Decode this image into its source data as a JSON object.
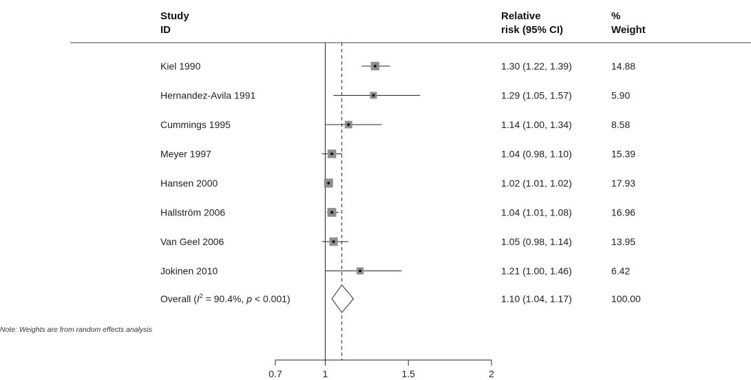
{
  "header": {
    "study_line1": "Study",
    "study_line2": "ID",
    "rr_line1": "Relative",
    "rr_line2": "risk (95% CI)",
    "weight_line1": "%",
    "weight_line2": "Weight"
  },
  "note": "Note: Weights are from random effects analysis",
  "chart_data": {
    "type": "forest",
    "title": "",
    "xlabel": "",
    "ylabel": "",
    "xlim": [
      0.7,
      2
    ],
    "x_ticks": [
      "0.7",
      "1",
      "1.5",
      "2"
    ],
    "reference_line": 1,
    "studies": [
      {
        "study": "Kiel 1990",
        "estimate": 1.3,
        "lower": 1.22,
        "upper": 1.39,
        "rr_text": "1.30 (1.22, 1.39)",
        "weight": 14.88,
        "weight_text": "14.88"
      },
      {
        "study": "Hernandez-Avila 1991",
        "estimate": 1.29,
        "lower": 1.05,
        "upper": 1.57,
        "rr_text": "1.29 (1.05, 1.57)",
        "weight": 5.9,
        "weight_text": "5.90"
      },
      {
        "study": "Cummings 1995",
        "estimate": 1.14,
        "lower": 1.0,
        "upper": 1.34,
        "rr_text": "1.14 (1.00, 1.34)",
        "weight": 8.58,
        "weight_text": "8.58"
      },
      {
        "study": "Meyer 1997",
        "estimate": 1.04,
        "lower": 0.98,
        "upper": 1.1,
        "rr_text": "1.04 (0.98, 1.10)",
        "weight": 15.39,
        "weight_text": "15.39"
      },
      {
        "study": "Hansen 2000",
        "estimate": 1.02,
        "lower": 1.01,
        "upper": 1.02,
        "rr_text": "1.02 (1.01, 1.02)",
        "weight": 17.93,
        "weight_text": "17.93"
      },
      {
        "study": "Hallström 2006",
        "estimate": 1.04,
        "lower": 1.01,
        "upper": 1.08,
        "rr_text": "1.04 (1.01, 1.08)",
        "weight": 16.96,
        "weight_text": "16.96"
      },
      {
        "study": "Van Geel 2006",
        "estimate": 1.05,
        "lower": 0.98,
        "upper": 1.14,
        "rr_text": "1.05 (0.98, 1.14)",
        "weight": 13.95,
        "weight_text": "13.95"
      },
      {
        "study": "Jokinen 2010",
        "estimate": 1.21,
        "lower": 1.0,
        "upper": 1.46,
        "rr_text": "1.21 (1.00, 1.46)",
        "weight": 6.42,
        "weight_text": "6.42"
      }
    ],
    "overall": {
      "label_prefix": "Overall (",
      "i2_symbol": "I",
      "i2_sup": "2",
      "i2_mid": " = 90.4%, ",
      "p_symbol": "p",
      "p_tail": " < 0.001)",
      "estimate": 1.1,
      "lower": 1.04,
      "upper": 1.17,
      "rr_text": "1.10 (1.04, 1.17)",
      "weight": 100.0,
      "weight_text": "100.00"
    },
    "colors": {
      "box": "#8f8f8f",
      "line": "#222222",
      "header_rule": "#666666"
    }
  }
}
